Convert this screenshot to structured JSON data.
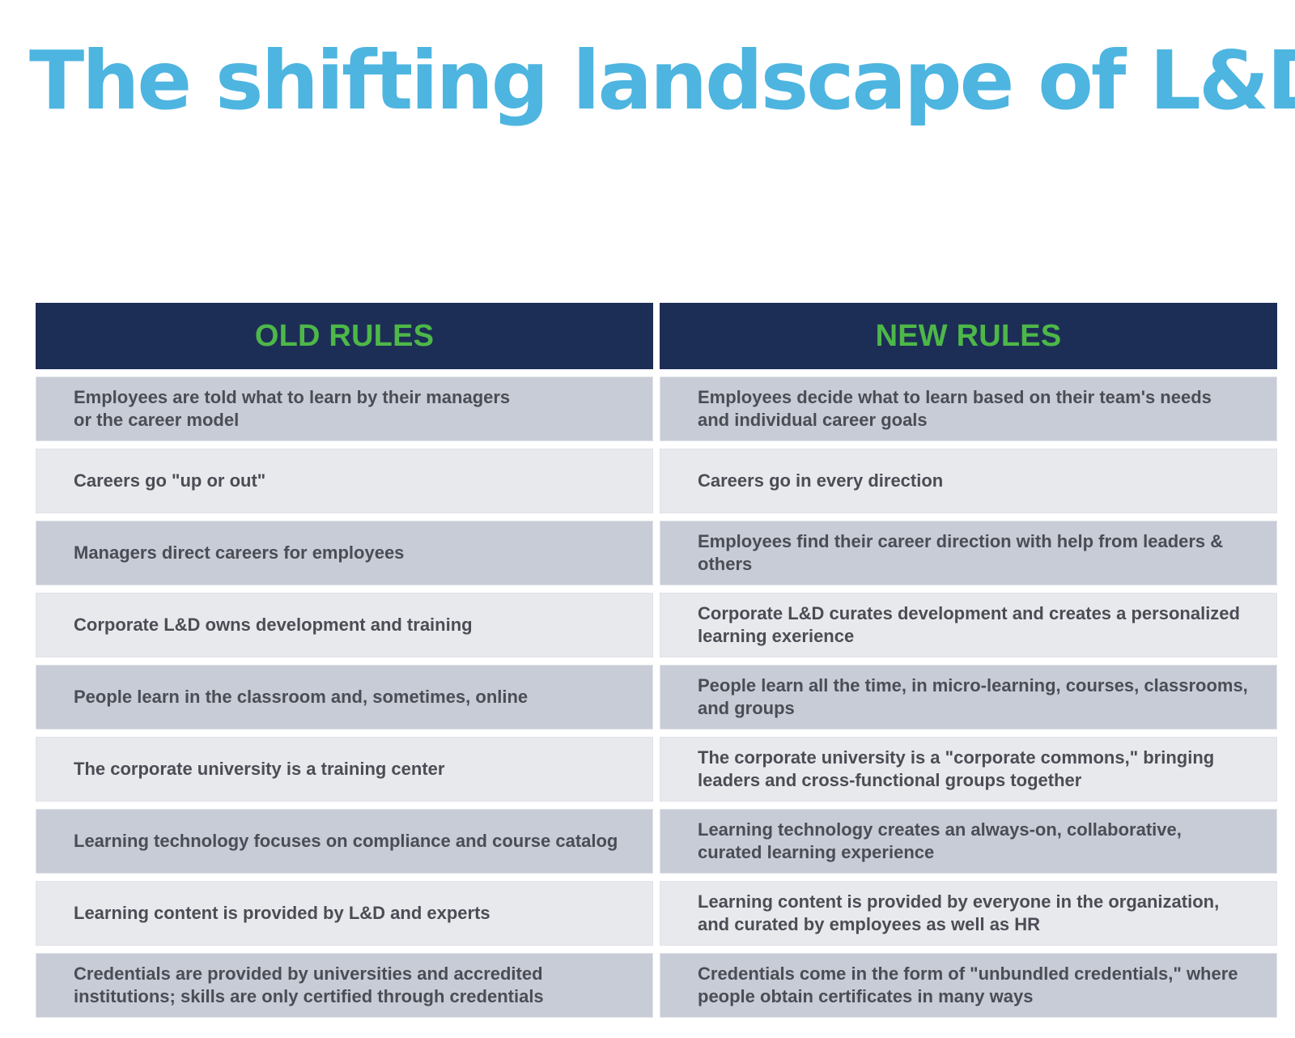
{
  "title": "The shifting landscape of L&D",
  "table": {
    "headers": [
      "OLD RULES",
      "NEW RULES"
    ],
    "rows": [
      [
        "Employees are told what to learn by their managers\nor the career model",
        "Employees decide what to learn based on their team's needs\nand individual career goals"
      ],
      [
        "Careers go \"up or out\"",
        "Careers go in every direction"
      ],
      [
        "Managers direct careers for employees",
        "Employees find their career direction with help from leaders & others"
      ],
      [
        "Corporate L&D owns development and training",
        "Corporate L&D curates development and creates a personalized\nlearning exerience"
      ],
      [
        "People learn in the classroom and, sometimes, online",
        "People learn all the time, in micro-learning, courses, classrooms,\nand groups"
      ],
      [
        "The corporate university is a training center",
        "The corporate university is a \"corporate commons,\" bringing\nleaders and cross-functional groups together"
      ],
      [
        "Learning technology focuses on compliance and course catalog",
        "Learning technology creates an always-on, collaborative,\ncurated learning experience"
      ],
      [
        "Learning content is provided by L&D and experts",
        "Learning content is provided by everyone in the organization,\nand curated by employees as well as HR"
      ],
      [
        "Credentials are provided by universities and accredited\ninstitutions; skills are only certified through credentials",
        "Credentials come in the form of \"unbundled credentials,\" where\npeople obtain certificates in many ways"
      ]
    ]
  }
}
